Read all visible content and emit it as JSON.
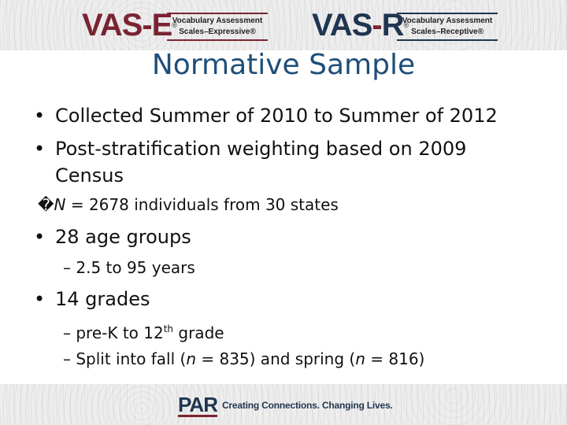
{
  "header": {
    "logo_expressive": {
      "mark_part1": "VAS",
      "mark_part2": "E",
      "reg": "®",
      "tagline_line1": "Vocabulary Assessment",
      "tagline_line2": "Scales–Expressive®"
    },
    "logo_receptive": {
      "mark_part1": "VAS",
      "mark_part2": "R",
      "reg": "®",
      "tagline_line1": "Vocabulary Assessment",
      "tagline_line2": "Scales–Receptive®"
    }
  },
  "slide": {
    "title": "Normative Sample",
    "bullet_1": "Collected Summer of 2010 to Summer of 2012",
    "bullet_2_line1": "Post-stratification weighting based on 2009",
    "bullet_2_line2": "Census",
    "n_line_box": "�",
    "n_line_var": "N",
    "n_line_rest": " = 2678 individuals from 30 states",
    "bullet_3": "28 age groups",
    "bullet_3_sub": "– 2.5 to 95 years",
    "bullet_4": "14 grades",
    "bullet_4_sub1_pre": "– pre-K to 12",
    "bullet_4_sub1_sup": "th",
    "bullet_4_sub1_post": " grade",
    "bullet_4_sub2_pre": "– Split into fall (",
    "bullet_4_sub2_n1": "n",
    "bullet_4_sub2_mid": " = 835) and spring (",
    "bullet_4_sub2_n2": "n",
    "bullet_4_sub2_post": " = 816)",
    "bullet_char": "•"
  },
  "footer": {
    "brand": "PAR",
    "tagline": "Creating Connections. Changing Lives."
  },
  "colors": {
    "title": "#1f4e79",
    "maroon": "#7a2431",
    "navy": "#1f3550"
  }
}
